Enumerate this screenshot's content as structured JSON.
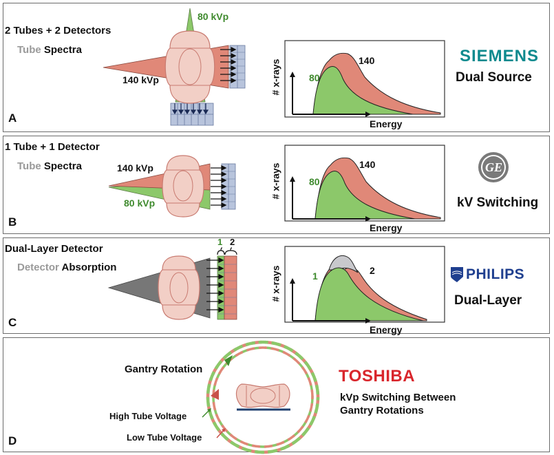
{
  "panels": [
    {
      "letter": "A",
      "heading": "2 Tubes + 2 Detectors",
      "sub_grey": "Tube",
      "sub_black": "Spectra",
      "kv_high": "140 kVp",
      "kv_low": "80 kVp",
      "graph": {
        "ylabel": "# x-rays",
        "xlabel": "Energy",
        "label_high": "140",
        "label_low": "80"
      },
      "vendor_logo": "SIEMENS",
      "vendor_color": "#0e8a8e",
      "technique": "Dual Source"
    },
    {
      "letter": "B",
      "heading": "1 Tube + 1 Detector",
      "sub_grey": "Tube",
      "sub_black": "Spectra",
      "kv_high": "140 kVp",
      "kv_low": "80 kVp",
      "graph": {
        "ylabel": "# x-rays",
        "xlabel": "Energy",
        "label_high": "140",
        "label_low": "80"
      },
      "vendor_logo": "GE",
      "technique": "kV Switching"
    },
    {
      "letter": "C",
      "heading": "Dual-Layer Detector",
      "sub_grey": "Detector",
      "sub_black": "Absorption",
      "layer1": "1",
      "layer2": "2",
      "graph": {
        "ylabel": "# x-rays",
        "xlabel": "Energy",
        "label_high": "2",
        "label_low": "1"
      },
      "vendor_logo": "PHILIPS",
      "vendor_color": "#1f3f8f",
      "technique": "Dual-Layer"
    },
    {
      "letter": "D",
      "gantry_label": "Gantry Rotation",
      "high_label": "High Tube Voltage",
      "low_label": "Low Tube Voltage",
      "vendor_logo": "TOSHIBA",
      "vendor_color": "#d9262c",
      "technique_line1": "kVp Switching Between",
      "technique_line2": "Gantry Rotations"
    }
  ],
  "colors": {
    "red_beam": "#e08878",
    "green_beam": "#8cc86a",
    "grey_beam": "#777777",
    "body": "#f2cfc6",
    "detector": "#b8c4dc"
  }
}
